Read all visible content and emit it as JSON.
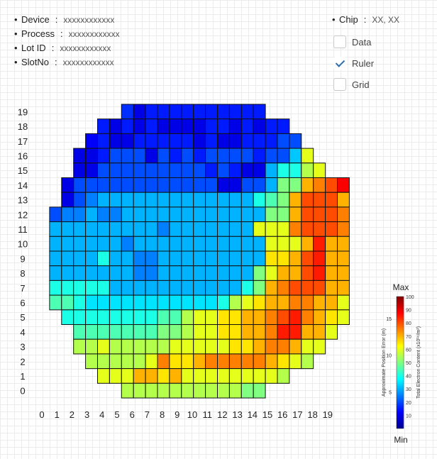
{
  "info": [
    {
      "label": "Device",
      "value": "xxxxxxxxxxxx"
    },
    {
      "label": "Process",
      "value": "xxxxxxxxxxxx"
    },
    {
      "label": "Lot ID",
      "value": "xxxxxxxxxxxx"
    },
    {
      "label": "SlotNo",
      "value": "xxxxxxxxxxxx"
    }
  ],
  "chip": {
    "label": "Chip",
    "value": "XX, XX"
  },
  "options": [
    {
      "label": "Data",
      "checked": false
    },
    {
      "label": "Ruler",
      "checked": true
    },
    {
      "label": "Grid",
      "checked": false
    }
  ],
  "chart_data": {
    "type": "heatmap",
    "x_ticks": [
      "0",
      "1",
      "2",
      "3",
      "4",
      "5",
      "6",
      "7",
      "8",
      "9",
      "10",
      "11",
      "12",
      "13",
      "14",
      "15",
      "16",
      "17",
      "18",
      "19"
    ],
    "y_ticks": [
      "0",
      "1",
      "2",
      "3",
      "4",
      "5",
      "6",
      "7",
      "8",
      "9",
      "10",
      "11",
      "12",
      "13",
      "14",
      "15",
      "16",
      "17",
      "18",
      "19"
    ],
    "rows": [
      {
        "y": 19,
        "x_start": 7,
        "values": [
          17,
          10,
          15,
          15,
          15,
          15,
          15,
          15,
          15,
          15,
          15,
          15
        ]
      },
      {
        "y": 18,
        "x_start": 5,
        "values": [
          15,
          10,
          15,
          10,
          15,
          10,
          10,
          10,
          10,
          15,
          15,
          10,
          15,
          10,
          15,
          15
        ]
      },
      {
        "y": 17,
        "x_start": 4,
        "values": [
          12,
          15,
          10,
          10,
          15,
          15,
          15,
          15,
          15,
          10,
          15,
          10,
          10,
          15,
          15,
          15,
          20,
          20
        ]
      },
      {
        "y": 16,
        "x_start": 3,
        "values": [
          10,
          10,
          15,
          20,
          20,
          20,
          10,
          20,
          15,
          20,
          15,
          20,
          20,
          20,
          20,
          15,
          20,
          20,
          32,
          60
        ]
      },
      {
        "y": 15,
        "x_start": 3,
        "values": [
          10,
          10,
          20,
          20,
          20,
          20,
          20,
          20,
          20,
          20,
          20,
          15,
          20,
          15,
          10,
          10,
          30,
          40,
          40,
          55,
          60
        ]
      },
      {
        "y": 14,
        "x_start": 2,
        "values": [
          10,
          20,
          20,
          20,
          20,
          20,
          20,
          20,
          20,
          20,
          20,
          20,
          20,
          10,
          10,
          20,
          20,
          30,
          50,
          50,
          70,
          75,
          80,
          88
        ]
      },
      {
        "y": 13,
        "x_start": 2,
        "values": [
          10,
          20,
          25,
          30,
          30,
          30,
          30,
          30,
          30,
          30,
          30,
          30,
          30,
          30,
          30,
          30,
          40,
          45,
          50,
          70,
          80,
          80,
          80,
          70
        ]
      },
      {
        "y": 12,
        "x_start": 1,
        "values": [
          20,
          25,
          25,
          30,
          25,
          25,
          30,
          30,
          30,
          30,
          30,
          30,
          30,
          30,
          30,
          30,
          30,
          30,
          50,
          50,
          70,
          80,
          80,
          80,
          75
        ]
      },
      {
        "y": 11,
        "x_start": 1,
        "values": [
          30,
          30,
          30,
          30,
          30,
          30,
          30,
          30,
          30,
          25,
          30,
          30,
          30,
          30,
          30,
          30,
          30,
          60,
          60,
          60,
          75,
          80,
          80,
          80,
          75
        ]
      },
      {
        "y": 10,
        "x_start": 1,
        "values": [
          30,
          30,
          30,
          30,
          30,
          30,
          25,
          30,
          30,
          30,
          30,
          30,
          30,
          30,
          30,
          30,
          30,
          30,
          60,
          60,
          60,
          70,
          85,
          70,
          70
        ]
      },
      {
        "y": 9,
        "x_start": 1,
        "values": [
          30,
          30,
          30,
          30,
          40,
          30,
          30,
          25,
          25,
          30,
          30,
          30,
          30,
          30,
          30,
          30,
          30,
          30,
          65,
          65,
          70,
          80,
          85,
          70,
          70
        ]
      },
      {
        "y": 8,
        "x_start": 1,
        "values": [
          30,
          30,
          30,
          30,
          30,
          30,
          30,
          25,
          25,
          30,
          30,
          30,
          30,
          30,
          30,
          30,
          30,
          50,
          60,
          70,
          70,
          80,
          85,
          70,
          70
        ]
      },
      {
        "y": 7,
        "x_start": 1,
        "values": [
          40,
          40,
          40,
          40,
          40,
          30,
          30,
          30,
          30,
          30,
          30,
          30,
          30,
          30,
          30,
          30,
          40,
          50,
          70,
          75,
          80,
          80,
          80,
          70,
          70
        ]
      },
      {
        "y": 6,
        "x_start": 1,
        "values": [
          45,
          45,
          40,
          35,
          35,
          35,
          35,
          35,
          35,
          35,
          35,
          35,
          35,
          35,
          40,
          55,
          60,
          65,
          70,
          70,
          75,
          75,
          70,
          70,
          60
        ]
      },
      {
        "y": 5,
        "x_start": 2,
        "values": [
          40,
          40,
          40,
          40,
          40,
          40,
          40,
          40,
          45,
          45,
          55,
          60,
          60,
          65,
          65,
          70,
          70,
          75,
          80,
          85,
          75,
          70,
          65,
          60
        ]
      },
      {
        "y": 4,
        "x_start": 3,
        "values": [
          45,
          45,
          45,
          45,
          45,
          45,
          45,
          50,
          50,
          55,
          60,
          60,
          65,
          65,
          70,
          70,
          75,
          85,
          85,
          70,
          70,
          60
        ]
      },
      {
        "y": 3,
        "x_start": 3,
        "values": [
          55,
          55,
          60,
          55,
          55,
          55,
          55,
          55,
          60,
          60,
          60,
          60,
          60,
          65,
          65,
          70,
          75,
          75,
          70,
          60,
          60
        ]
      },
      {
        "y": 2,
        "x_start": 4,
        "values": [
          55,
          55,
          55,
          55,
          55,
          60,
          75,
          65,
          65,
          70,
          75,
          75,
          75,
          75,
          75,
          70,
          65,
          60,
          55
        ]
      },
      {
        "y": 1,
        "x_start": 5,
        "values": [
          60,
          60,
          60,
          70,
          70,
          65,
          70,
          60,
          60,
          60,
          60,
          60,
          60,
          60,
          60,
          55
        ]
      },
      {
        "y": 0,
        "x_start": 7,
        "values": [
          55,
          55,
          55,
          55,
          55,
          55,
          55,
          55,
          55,
          55,
          50,
          50
        ]
      }
    ],
    "colorbar": {
      "max_label": "Max",
      "min_label": "Min",
      "ticks": [
        "100",
        "90",
        "80",
        "70",
        "60",
        "50",
        "40",
        "30",
        "20",
        "10"
      ],
      "right_label": "Total Electron Content (x10¹⁶/m²)",
      "left_label": "Approximate Position Error (m)",
      "left_ticks": [
        "15",
        "10",
        "5"
      ],
      "range": [
        0,
        100
      ]
    }
  }
}
